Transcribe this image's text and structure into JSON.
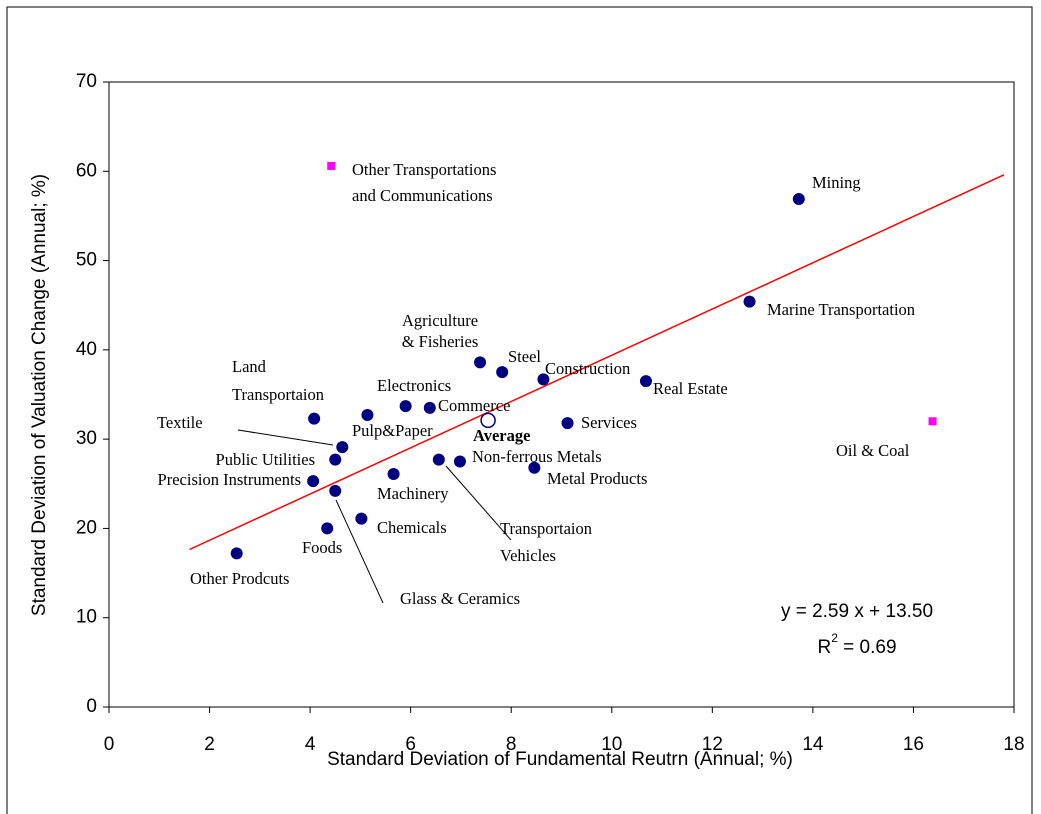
{
  "chart_data": {
    "type": "scatter",
    "xlabel": "Standard Deviation of Fundamental Reutrn  (Annual; %)",
    "ylabel": "Standard Deviation of Valuation Change (Annual; %)",
    "xlim": [
      0,
      18
    ],
    "xticks": [
      0,
      2,
      4,
      6,
      8,
      10,
      12,
      14,
      16,
      18
    ],
    "ylim": [
      0,
      70
    ],
    "yticks": [
      0,
      10,
      20,
      30,
      40,
      50,
      60,
      70
    ],
    "grid": false,
    "series": [
      {
        "color": "#000080",
        "marker": "circle",
        "x": [
          13.72,
          12.74,
          10.68,
          9.12,
          8.64,
          7.82,
          7.38,
          6.38,
          5.9,
          5.14,
          4.08,
          4.64,
          4.5,
          4.06,
          4.5,
          4.34,
          5.02,
          5.66,
          6.56,
          6.98,
          8.46,
          2.54
        ],
        "values": [
          56.9,
          45.4,
          36.5,
          31.8,
          36.7,
          37.5,
          38.6,
          33.5,
          33.7,
          32.7,
          32.3,
          29.1,
          27.7,
          25.3,
          24.2,
          20.0,
          21.1,
          26.1,
          27.7,
          27.5,
          26.8,
          17.2
        ],
        "labels": [
          [
            "Mining"
          ],
          [
            "Marine Transportation"
          ],
          [
            "Real Estate"
          ],
          [
            "Services"
          ],
          [
            "Construction"
          ],
          [
            "Steel"
          ],
          [
            "Agriculture",
            "& Fisheries"
          ],
          [
            "Commerce"
          ],
          [
            "Electronics"
          ],
          [
            "Pulp&Paper"
          ],
          [
            "Land",
            "Transportaion"
          ],
          [
            "Textile"
          ],
          [
            "Public Utilities"
          ],
          [
            "Precision Instruments"
          ],
          [
            "Glass & Ceramics"
          ],
          [
            "Foods"
          ],
          [
            "Chemicals"
          ],
          [
            "Machinery"
          ],
          [
            "Transportaion",
            "Vehicles"
          ],
          [
            "Non-ferrous Metals"
          ],
          [
            "Metal Products"
          ],
          [
            "Other Prodcuts"
          ]
        ]
      },
      {
        "color": "#000080",
        "marker": "hollow-circle",
        "x": [
          7.54
        ],
        "values": [
          32.1
        ],
        "labels": [
          [
            "Average"
          ]
        ]
      },
      {
        "color": "#ff00ff",
        "marker": "square",
        "x": [
          4.42,
          16.38
        ],
        "values": [
          60.6,
          32.0
        ],
        "labels": [
          [
            "Other Transportations",
            "and Communications"
          ],
          [
            "Oil & Coal"
          ]
        ]
      }
    ],
    "trendline": {
      "color": "#ff0000",
      "x": [
        1.6,
        17.8
      ],
      "values": [
        17.64,
        59.6
      ]
    },
    "equation": "y = 2.59 x + 13.50",
    "r2": [
      "R",
      "2",
      " = 0.69"
    ]
  }
}
